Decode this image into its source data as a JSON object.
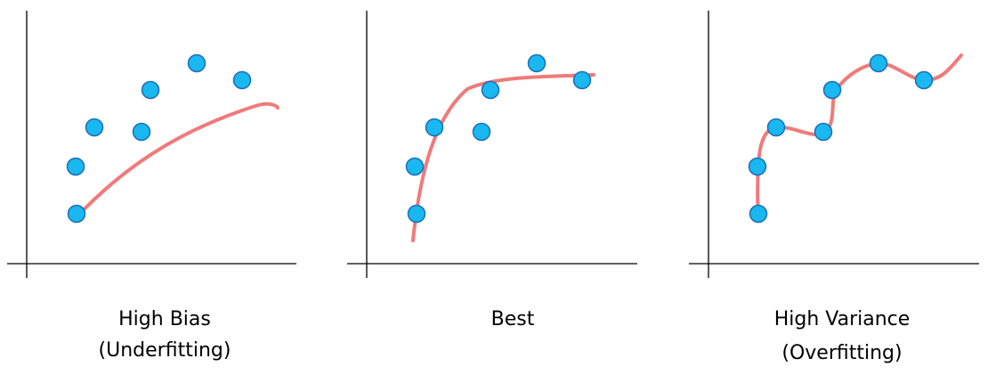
{
  "chart_data": [
    {
      "type": "scatter",
      "caption_line1": "High Bias",
      "caption_line2": "(Underfitting)",
      "points": [
        [
          1,
          1
        ],
        [
          1,
          2
        ],
        [
          2,
          3
        ],
        [
          4,
          3
        ],
        [
          4,
          4
        ],
        [
          5,
          5
        ],
        [
          7,
          4.5
        ]
      ],
      "fit": "linear"
    },
    {
      "type": "scatter",
      "caption_line1": "Best",
      "caption_line2": "",
      "points": [
        [
          1,
          1
        ],
        [
          1,
          2
        ],
        [
          2,
          3
        ],
        [
          4,
          3
        ],
        [
          4,
          4
        ],
        [
          5,
          5
        ],
        [
          7,
          4.5
        ]
      ],
      "fit": "good"
    },
    {
      "type": "scatter",
      "caption_line1": "High Variance",
      "caption_line2": "(Overfitting)",
      "points": [
        [
          1,
          1
        ],
        [
          1,
          2
        ],
        [
          2,
          3
        ],
        [
          4,
          3
        ],
        [
          4,
          4
        ],
        [
          5,
          5
        ],
        [
          7,
          4.5
        ]
      ],
      "fit": "overfit"
    }
  ],
  "colors": {
    "point_fill": "#1ab8f0",
    "point_stroke": "#1a6fb5",
    "curve": "#f07a7a",
    "axis": "#000000"
  }
}
